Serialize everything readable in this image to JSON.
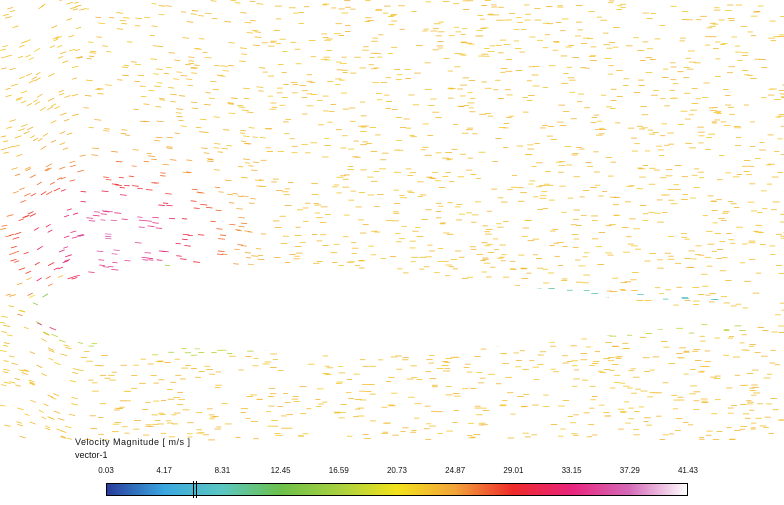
{
  "legend": {
    "title": "Velocity Magnitude [ m/s ]",
    "subtitle": "vector-1",
    "ticks": [
      "0.03",
      "4.17",
      "8.31",
      "12.45",
      "16.59",
      "20.73",
      "24.87",
      "29.01",
      "33.15",
      "37.29",
      "41.43"
    ],
    "colormap": [
      "#2a3c9c",
      "#3aa8e0",
      "#5cc7c0",
      "#6cc04a",
      "#a8d040",
      "#f2e21c",
      "#f2a43a",
      "#ee2a2a",
      "#e8247c",
      "#d46ab8",
      "#ffffff"
    ]
  }
}
